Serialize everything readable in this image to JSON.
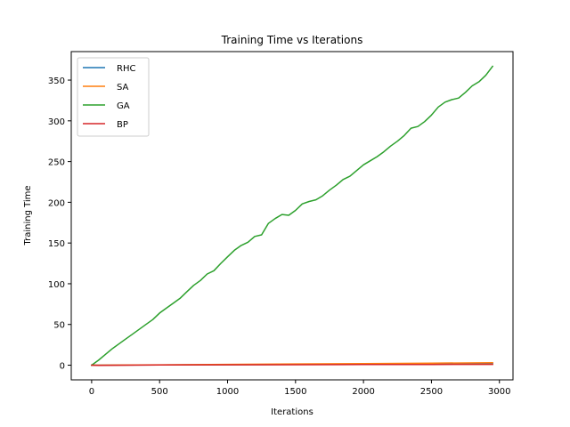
{
  "chart_data": {
    "type": "line",
    "title": "Training Time vs Iterations",
    "xlabel": "Iterations",
    "ylabel": "Training Time",
    "xlim": [
      -150,
      3100
    ],
    "ylim": [
      -18,
      385
    ],
    "xticks": [
      0,
      500,
      1000,
      1500,
      2000,
      2500,
      3000
    ],
    "yticks": [
      0,
      50,
      100,
      150,
      200,
      250,
      300,
      350
    ],
    "grid": false,
    "legend_position": "top-left",
    "series": [
      {
        "name": "RHC",
        "color": "#1f77b4",
        "x": [
          0,
          500,
          1000,
          1500,
          2000,
          2500,
          2950
        ],
        "y": [
          0,
          0.3,
          0.6,
          0.9,
          1.2,
          1.5,
          1.8
        ]
      },
      {
        "name": "SA",
        "color": "#ff7f0e",
        "x": [
          0,
          500,
          1000,
          1500,
          2000,
          2500,
          2950
        ],
        "y": [
          0,
          0.5,
          1.0,
          1.5,
          2.0,
          2.5,
          3.0
        ]
      },
      {
        "name": "GA",
        "color": "#2ca02c",
        "x": [
          0,
          50,
          100,
          150,
          200,
          250,
          300,
          350,
          400,
          450,
          500,
          550,
          600,
          650,
          700,
          750,
          800,
          850,
          900,
          950,
          1000,
          1050,
          1100,
          1150,
          1200,
          1250,
          1300,
          1350,
          1400,
          1450,
          1500,
          1550,
          1600,
          1650,
          1700,
          1750,
          1800,
          1850,
          1900,
          1950,
          2000,
          2050,
          2100,
          2150,
          2200,
          2250,
          2300,
          2350,
          2400,
          2450,
          2500,
          2550,
          2600,
          2650,
          2700,
          2750,
          2800,
          2850,
          2900,
          2950
        ],
        "y": [
          0,
          6,
          13,
          20,
          26,
          32,
          38,
          44,
          50,
          56,
          64,
          70,
          76,
          82,
          90,
          98,
          104,
          112,
          116,
          125,
          133,
          141,
          147,
          151,
          158,
          160,
          174,
          180,
          185,
          184,
          190,
          198,
          201,
          203,
          208,
          215,
          221,
          228,
          232,
          239,
          246,
          251,
          256,
          262,
          269,
          275,
          282,
          291,
          293,
          299,
          307,
          317,
          323,
          326,
          328,
          335,
          343,
          348,
          356,
          367
        ]
      },
      {
        "name": "BP",
        "color": "#d62728",
        "x": [
          0,
          50,
          500,
          1000,
          1500,
          2000,
          2500,
          2950
        ],
        "y": [
          0,
          -0.3,
          0.3,
          0.5,
          0.6,
          0.8,
          0.9,
          1.0
        ]
      }
    ]
  }
}
